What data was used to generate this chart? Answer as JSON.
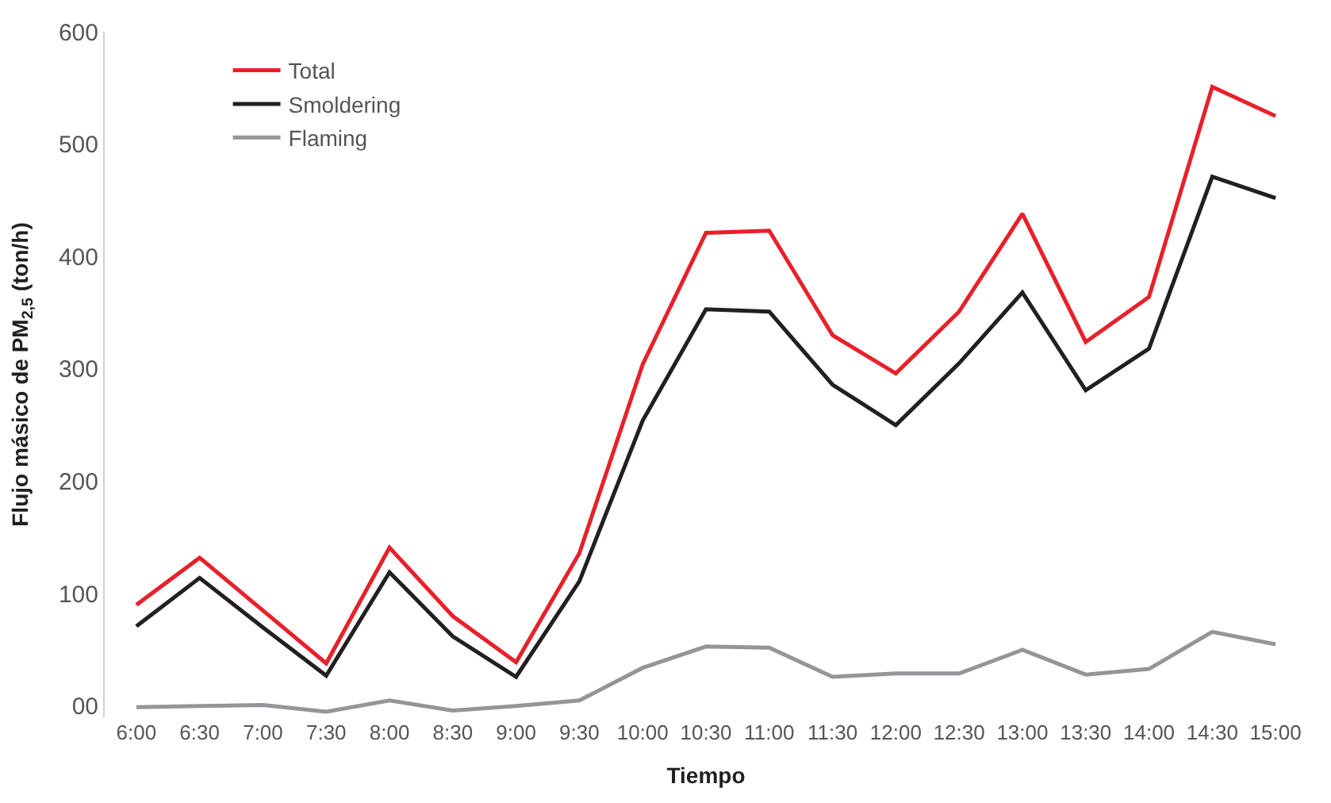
{
  "chart_data": {
    "type": "line",
    "xlabel": "Tiempo",
    "ylabel": "Flujo másico de PM$_{2,5}$ (ton/h)",
    "categories": [
      "6:00",
      "6:30",
      "7:00",
      "7:30",
      "8:00",
      "8:30",
      "9:00",
      "9:30",
      "10:00",
      "10:30",
      "11:00",
      "11:30",
      "12:00",
      "12:30",
      "13:00",
      "13:30",
      "14:00",
      "14:30",
      "15:00"
    ],
    "series": [
      {
        "name": "Total",
        "color": "#e8202a",
        "values": [
          90,
          132,
          85,
          38,
          141,
          80,
          39,
          136,
          304,
          421,
          423,
          330,
          296,
          351,
          438,
          324,
          364,
          551,
          525
        ]
      },
      {
        "name": "Smoldering",
        "color": "#231f20",
        "values": [
          71,
          114,
          70,
          27,
          119,
          62,
          26,
          111,
          254,
          353,
          351,
          286,
          250,
          305,
          368,
          281,
          318,
          471,
          452
        ]
      },
      {
        "name": "Flaming",
        "color": "#939598",
        "values": [
          -1,
          0,
          1,
          -5,
          5,
          -4,
          0,
          5,
          34,
          53,
          52,
          26,
          29,
          29,
          50,
          28,
          33,
          66,
          55
        ]
      }
    ],
    "ylim": [
      -10,
      600
    ],
    "yticks": [
      {
        "value": 0,
        "label": "00"
      },
      100,
      200,
      300,
      400,
      500,
      600
    ],
    "legend": "top left",
    "marker": "none",
    "line_style": "solid"
  }
}
